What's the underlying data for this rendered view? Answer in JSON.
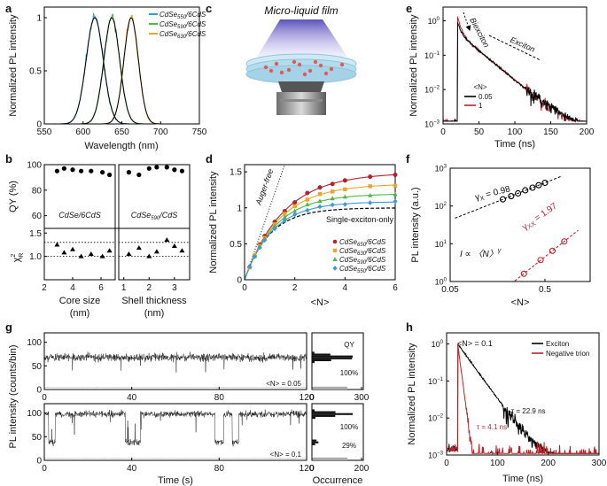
{
  "colors": {
    "cdse550": "#3a9ad9",
    "cdse590": "#4db848",
    "cdse630": "#e8a531",
    "cdse650": "#b8232b",
    "fit": "#000000",
    "exciton": "#000000",
    "trion": "#b8232b",
    "trace": "#111111",
    "background": "#aaaaaa",
    "liquid": "#a8d8ea",
    "dots": "#e05a5a"
  },
  "panels": {
    "a": {
      "label": "a",
      "chart_data": {
        "type": "line",
        "xlabel": "Wavelength (nm)",
        "ylabel": "Normalized PL intensity",
        "xlim": [
          550,
          750
        ],
        "ylim": [
          0,
          1.1
        ],
        "xticks": [
          "550",
          "600",
          "650",
          "700",
          "750"
        ],
        "yticks": [
          "0",
          "0.5",
          "1"
        ],
        "series": [
          {
            "name": "CdSe550/6CdS",
            "legend_main": "CdSe",
            "legend_sub": "550",
            "legend_rest": "/6CdS",
            "peak": 615,
            "fwhm": 26
          },
          {
            "name": "CdSe590/6CdS",
            "legend_main": "CdSe",
            "legend_sub": "590",
            "legend_rest": "/6CdS",
            "peak": 637,
            "fwhm": 24
          },
          {
            "name": "CdSe630/6CdS",
            "legend_main": "CdSe",
            "legend_sub": "630",
            "legend_rest": "/6CdS",
            "peak": 662,
            "fwhm": 22
          }
        ]
      }
    },
    "b": {
      "label": "b",
      "chart_data": {
        "type": "scatter",
        "ylabel_top": "QY (%)",
        "ylabel_bottom_main": "χ",
        "ylabel_bottom_sup": "2",
        "ylabel_bottom_sub": "R",
        "qy_ylim": [
          50,
          100
        ],
        "qy_yticks": [
          "60",
          "80",
          "100"
        ],
        "chi_ylim": [
          0.5,
          1.6
        ],
        "chi_yticks": [
          "1.5",
          "1.0"
        ],
        "chi_ref": [
          1.3,
          1.0
        ],
        "left": {
          "title": "CdSe/6CdS",
          "xlabel_line1": "Core size",
          "xlabel_line2": "(nm)",
          "xlim": [
            2,
            7
          ],
          "xticks": [
            "2",
            "4",
            "6"
          ],
          "x": [
            2.9,
            3.4,
            4.0,
            4.6,
            5.3,
            6.1,
            6.6
          ],
          "qy": [
            95,
            97,
            96,
            95,
            95,
            94,
            92
          ],
          "chi": [
            1.25,
            1.08,
            1.15,
            1.0,
            1.05,
            1.0,
            1.12
          ]
        },
        "right": {
          "title_main": "CdSe",
          "title_sub": "590",
          "title_rest": "/CdS",
          "xlabel_line1": "Shell thickness",
          "xlabel_line2": "(nm)",
          "xlim": [
            0.8,
            3.6
          ],
          "xticks": [
            "1",
            "2",
            "3"
          ],
          "x": [
            1.2,
            1.6,
            2.0,
            2.3,
            2.7,
            3.0,
            3.3
          ],
          "qy": [
            94,
            92,
            97,
            98,
            98,
            96,
            95
          ],
          "chi": [
            1.05,
            1.18,
            1.0,
            1.1,
            1.35,
            1.22,
            1.12
          ]
        }
      }
    },
    "c": {
      "label": "c",
      "title": "Micro-liquid film"
    },
    "d": {
      "label": "d",
      "chart_data": {
        "type": "scatter",
        "xlabel": "<N>",
        "ylabel": "Normalized PL intensity",
        "xlim": [
          0,
          6
        ],
        "ylim": [
          0,
          1.6
        ],
        "xticks": [
          "0",
          "2",
          "4",
          "6"
        ],
        "yticks": [
          "0",
          "0.5",
          "1",
          "1.5"
        ],
        "x": [
          0.2,
          0.4,
          0.6,
          0.8,
          1.2,
          1.6,
          2.0,
          2.5,
          3.0,
          3.5,
          4.0,
          5.0,
          6.0
        ],
        "annotation_auger": "Auger-free",
        "annotation_single": "Single-exciton-only",
        "series": [
          {
            "name": "CdSe650/6CdS",
            "legend_main": "CdSe",
            "legend_sub": "650",
            "legend_rest": "/6CdS",
            "asym": 1.62,
            "marker": "circle"
          },
          {
            "name": "CdSe630/6CdS",
            "legend_main": "CdSe",
            "legend_sub": "630",
            "legend_rest": "/6CdS",
            "asym": 1.45,
            "marker": "square"
          },
          {
            "name": "CdSe590/6CdS",
            "legend_main": "CdSe",
            "legend_sub": "590",
            "legend_rest": "/6CdS",
            "asym": 1.3,
            "marker": "triangle"
          },
          {
            "name": "CdSe550/6CdS",
            "legend_main": "CdSe",
            "legend_sub": "550",
            "legend_rest": "/6CdS",
            "asym": 1.18,
            "marker": "diamond"
          }
        ]
      }
    },
    "e": {
      "label": "e",
      "chart_data": {
        "type": "line",
        "xlabel": "Time (ns)",
        "ylabel": "Normalized PL intensity",
        "xlim": [
          0,
          200
        ],
        "ylim_log": [
          -3,
          0.4
        ],
        "xticks": [
          "0",
          "50",
          "100",
          "150",
          "200"
        ],
        "ytick_base": "10",
        "ytick_exps": [
          "0",
          "−1",
          "−2",
          "−3"
        ],
        "legend_title": "<N>",
        "annotation_biexciton": "Biexciton",
        "annotation_exciton": "Exciton",
        "series": [
          {
            "name": "0.05",
            "tau": 25,
            "onset": 20
          },
          {
            "name": "1",
            "tau": 25,
            "onset": 20,
            "biexciton_tau": 4,
            "biexciton_amp": 0.9
          }
        ]
      }
    },
    "f": {
      "label": "f",
      "chart_data": {
        "type": "scatter",
        "xlabel": "<N>",
        "ylabel": "PL intensity (a.u.)",
        "xlim_log": [
          -1.301,
          0.176
        ],
        "ylim_log": [
          0,
          3
        ],
        "xticks": [
          "0.05",
          "0.5"
        ],
        "ytick_base": "10",
        "ytick_exps": [
          "0",
          "1",
          "2",
          "3"
        ],
        "formula": "I ∝ 〈N〉",
        "formula_sup": "γ",
        "series": [
          {
            "name": "exciton",
            "gamma_label_main": "γ",
            "gamma_label_sub": "X",
            "gamma_value": " = 0.98",
            "x": [
              0.18,
              0.22,
              0.26,
              0.31,
              0.37,
              0.43,
              0.5
            ],
            "y": [
              150,
              182,
              215,
              260,
              305,
              355,
              410
            ]
          },
          {
            "name": "biexciton",
            "gamma_label_main": "γ",
            "gamma_label_sub": "XX",
            "gamma_value": " = 1.97",
            "x": [
              0.3,
              0.45,
              0.6,
              0.8
            ],
            "y": [
              1.6,
              3.7,
              6.5,
              11.5
            ]
          }
        ]
      }
    },
    "g": {
      "label": "g",
      "chart_data": {
        "type": "line",
        "xlabel": "Time (s)",
        "ylabel": "PL intensity (counts/bin)",
        "xlim": [
          0,
          120
        ],
        "xticks": [
          "0",
          "40",
          "80",
          "120"
        ],
        "ylim": [
          0,
          120
        ],
        "yticks": [
          "0",
          "50",
          "100"
        ],
        "hist_xlabel": "Occurrence",
        "hist_title": "QY",
        "traces": [
          {
            "label": "<N> = 0.05",
            "level": 68,
            "noise": 9,
            "hist_xticks": [
              "0",
              "300"
            ],
            "hist_labels": [
              "100%"
            ]
          },
          {
            "label": "<N> = 0.1",
            "level": 98,
            "noise": 7,
            "dim_level": 38,
            "hist_xticks": [
              "0",
              "200"
            ],
            "hist_labels": [
              "100%",
              "29%"
            ]
          }
        ]
      }
    },
    "h": {
      "label": "h",
      "chart_data": {
        "type": "line",
        "xlabel": "Time (ns)",
        "ylabel": "Normalized PL intensity",
        "xlim": [
          0,
          300
        ],
        "ylim_log": [
          -3,
          0.3
        ],
        "xticks": [
          "0",
          "100",
          "200",
          "300"
        ],
        "ytick_base": "10",
        "ytick_exps": [
          "0",
          "−1",
          "−2",
          "−3"
        ],
        "legend_title": "<N> = 0.1",
        "series": [
          {
            "name": "Exciton",
            "tau": 22.9,
            "tau_label": "τ = 22.9 ns",
            "onset": 22
          },
          {
            "name": "Negative trion",
            "tau": 4.1,
            "tau_label": "τ = 4.1 ns",
            "onset": 22
          }
        ]
      }
    }
  }
}
